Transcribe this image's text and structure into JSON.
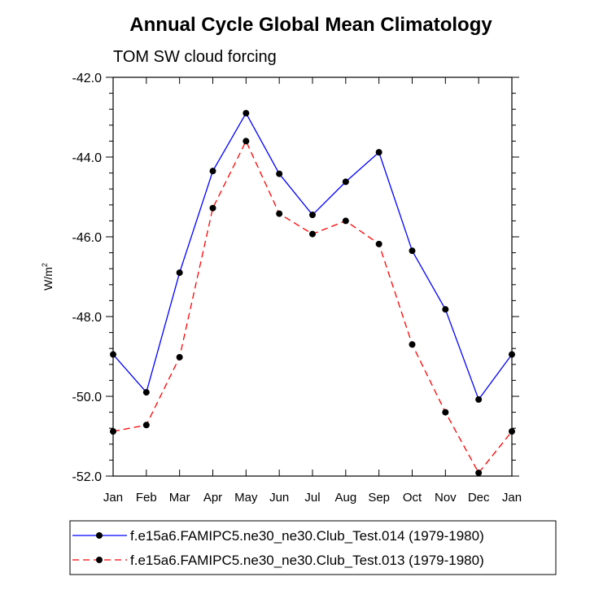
{
  "chart_data": {
    "type": "line",
    "title": "Annual Cycle Global Mean Climatology",
    "subtitle": "TOM SW cloud forcing",
    "ylabel_base": "W/m",
    "ylabel_sup": "2",
    "xlabel": "",
    "categories": [
      "Jan",
      "Feb",
      "Mar",
      "Apr",
      "May",
      "Jun",
      "Jul",
      "Aug",
      "Sep",
      "Oct",
      "Nov",
      "Dec",
      "Jan"
    ],
    "ylim": [
      -52.0,
      -42.0
    ],
    "yticks": [
      "-42.0",
      "-44.0",
      "-46.0",
      "-48.0",
      "-50.0",
      "-52.0"
    ],
    "ytick_values": [
      -42,
      -44,
      -46,
      -48,
      -50,
      -52
    ],
    "series": [
      {
        "name": "f.e15a6.FAMIPC5.ne30_ne30.Club_Test.014 (1979-1980)",
        "color": "#0000ff",
        "dash": "solid",
        "values": [
          -48.95,
          -49.9,
          -46.9,
          -44.35,
          -42.9,
          -44.42,
          -45.45,
          -44.62,
          -43.88,
          -46.35,
          -47.82,
          -50.08,
          -48.95
        ]
      },
      {
        "name": "f.e15a6.FAMIPC5.ne30_ne30.Club_Test.013 (1979-1980)",
        "color": "#ff0000",
        "dash": "dashed",
        "values": [
          -50.88,
          -50.72,
          -49.02,
          -45.28,
          -43.6,
          -45.42,
          -45.93,
          -45.6,
          -46.18,
          -48.7,
          -50.4,
          -51.92,
          -50.88
        ]
      }
    ],
    "legend_position": "bottom"
  }
}
